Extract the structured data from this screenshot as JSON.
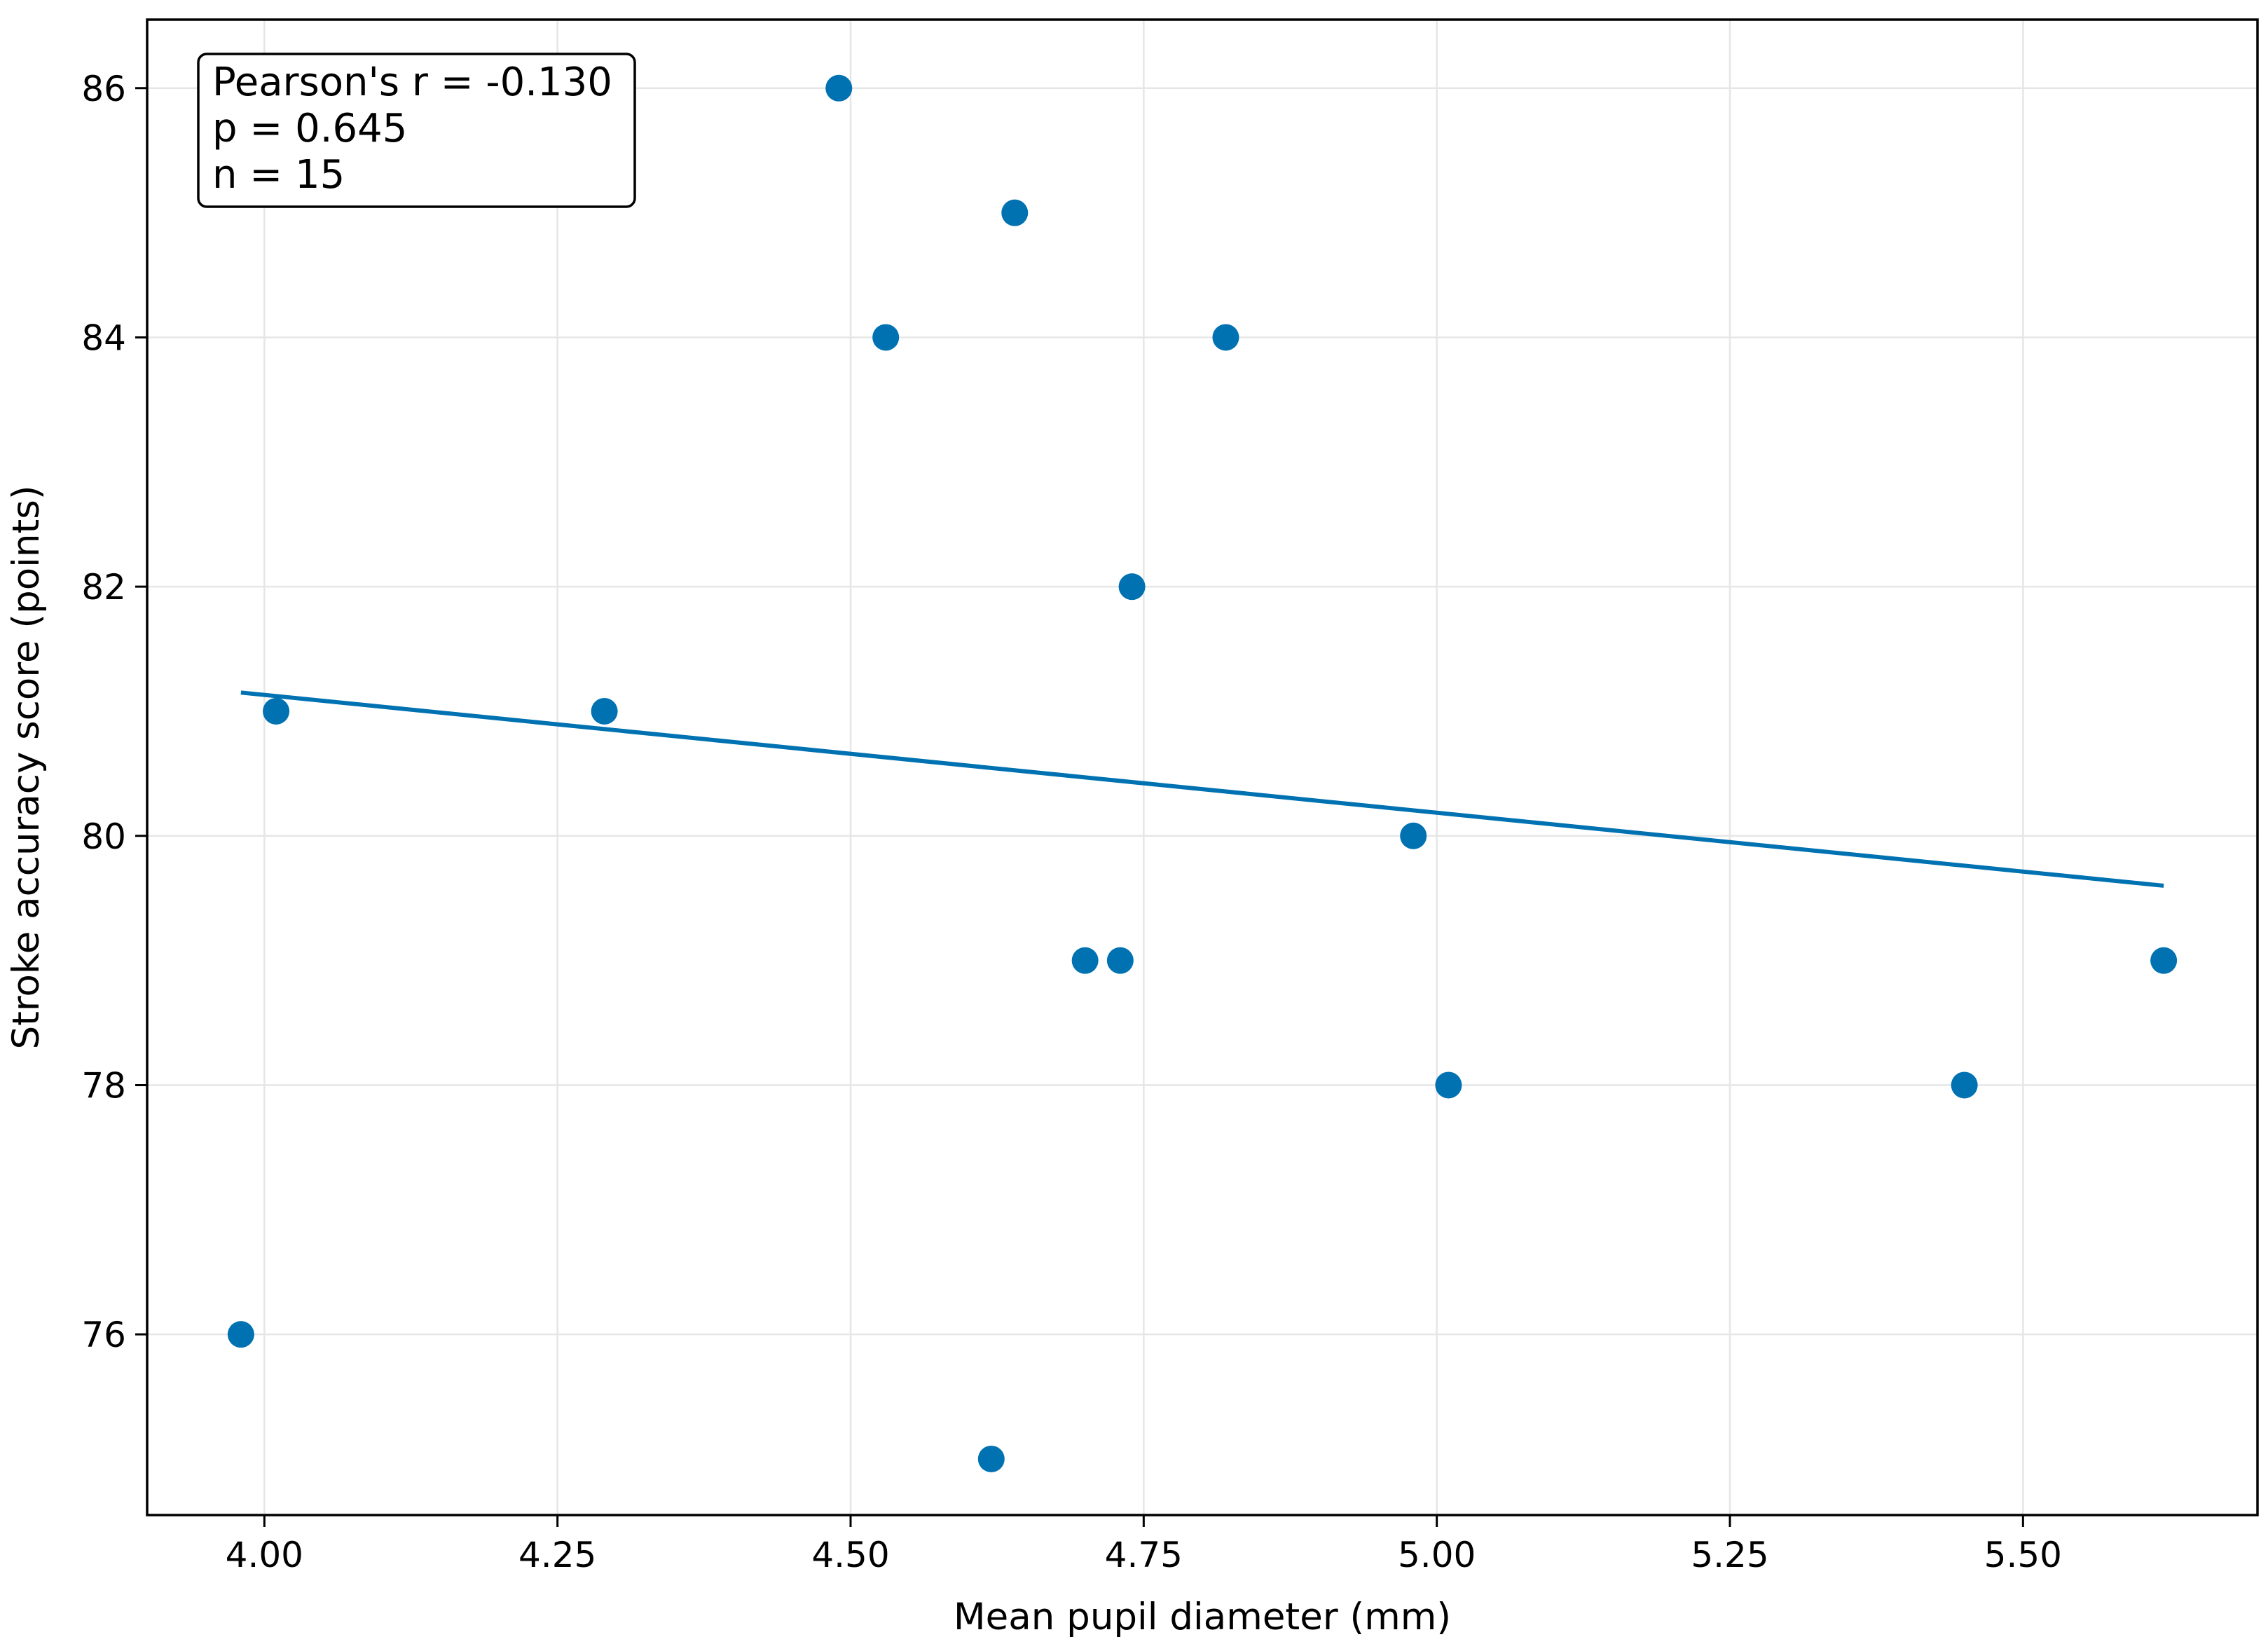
{
  "chart_data": {
    "type": "scatter",
    "xlabel": "Mean pupil diameter (mm)",
    "ylabel": "Stroke accuracy score (points)",
    "xlim": [
      3.9,
      5.7
    ],
    "ylim": [
      74.55,
      86.55
    ],
    "x_ticks": [
      "4.00",
      "4.25",
      "4.50",
      "4.75",
      "5.00",
      "5.25",
      "5.50"
    ],
    "y_ticks": [
      "76",
      "78",
      "80",
      "82",
      "84",
      "86"
    ],
    "grid": true,
    "points": [
      {
        "x": 3.98,
        "y": 76
      },
      {
        "x": 4.01,
        "y": 81
      },
      {
        "x": 4.29,
        "y": 81
      },
      {
        "x": 4.49,
        "y": 86
      },
      {
        "x": 4.53,
        "y": 84
      },
      {
        "x": 4.62,
        "y": 75
      },
      {
        "x": 4.64,
        "y": 85
      },
      {
        "x": 4.7,
        "y": 79
      },
      {
        "x": 4.73,
        "y": 79
      },
      {
        "x": 4.74,
        "y": 82
      },
      {
        "x": 4.82,
        "y": 84
      },
      {
        "x": 4.98,
        "y": 80
      },
      {
        "x": 5.01,
        "y": 78
      },
      {
        "x": 5.45,
        "y": 78
      },
      {
        "x": 5.62,
        "y": 79
      }
    ],
    "trend_line": {
      "x": [
        3.98,
        5.62
      ],
      "y": [
        81.15,
        79.6
      ]
    },
    "annotation": [
      "Pearson's r = -0.130",
      "p = 0.645",
      "n = 15"
    ],
    "annotation_placement": "top-left",
    "colors": {
      "points": "#0072b2",
      "line": "#0072b2",
      "grid": "#e6e6e6",
      "axes": "#000000"
    }
  }
}
